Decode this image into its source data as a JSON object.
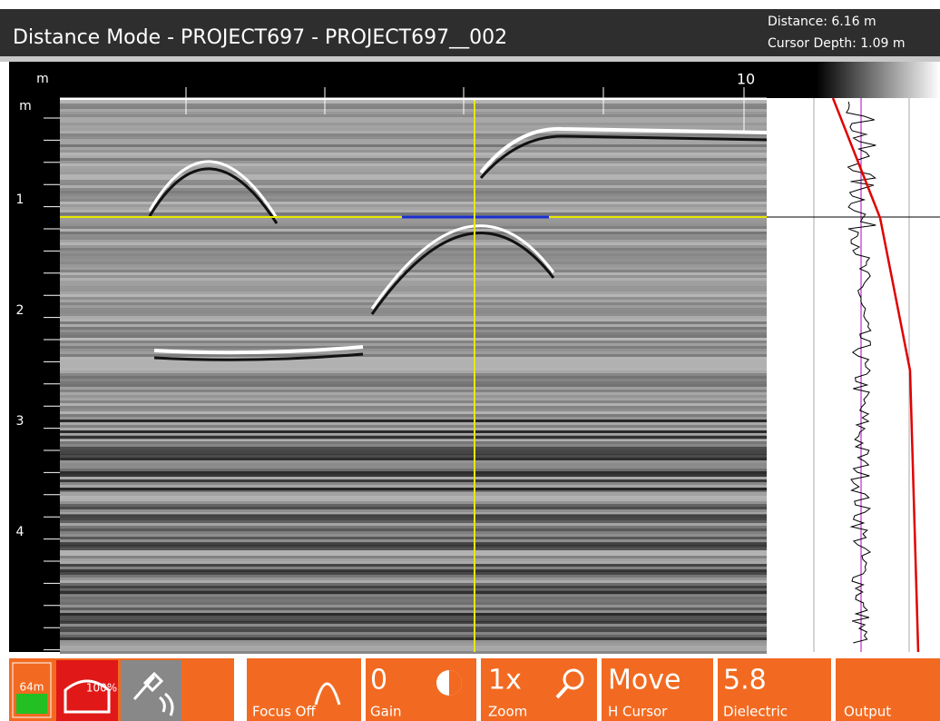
{
  "header": {
    "title": "Distance Mode - PROJECT697 - PROJECT697__002",
    "distance": "Distance: 6.16 m",
    "cursor_depth": "Cursor Depth: 1.09 m"
  },
  "ruler": {
    "unit": "m",
    "labels": [
      "10"
    ]
  },
  "depth_scale": {
    "unit": "m",
    "labels": [
      "1",
      "2",
      "3",
      "4"
    ]
  },
  "toolbar": {
    "battery": "64m",
    "device": "100%",
    "focus": {
      "label": "Focus Off"
    },
    "gain": {
      "value": "0",
      "label": "Gain"
    },
    "zoom": {
      "value": "1x",
      "label": "Zoom"
    },
    "cursor": {
      "value": "Move",
      "label": "H Cursor"
    },
    "dielectric": {
      "value": "5.8",
      "label": "Dielectric"
    },
    "output": {
      "label": "Output"
    }
  }
}
